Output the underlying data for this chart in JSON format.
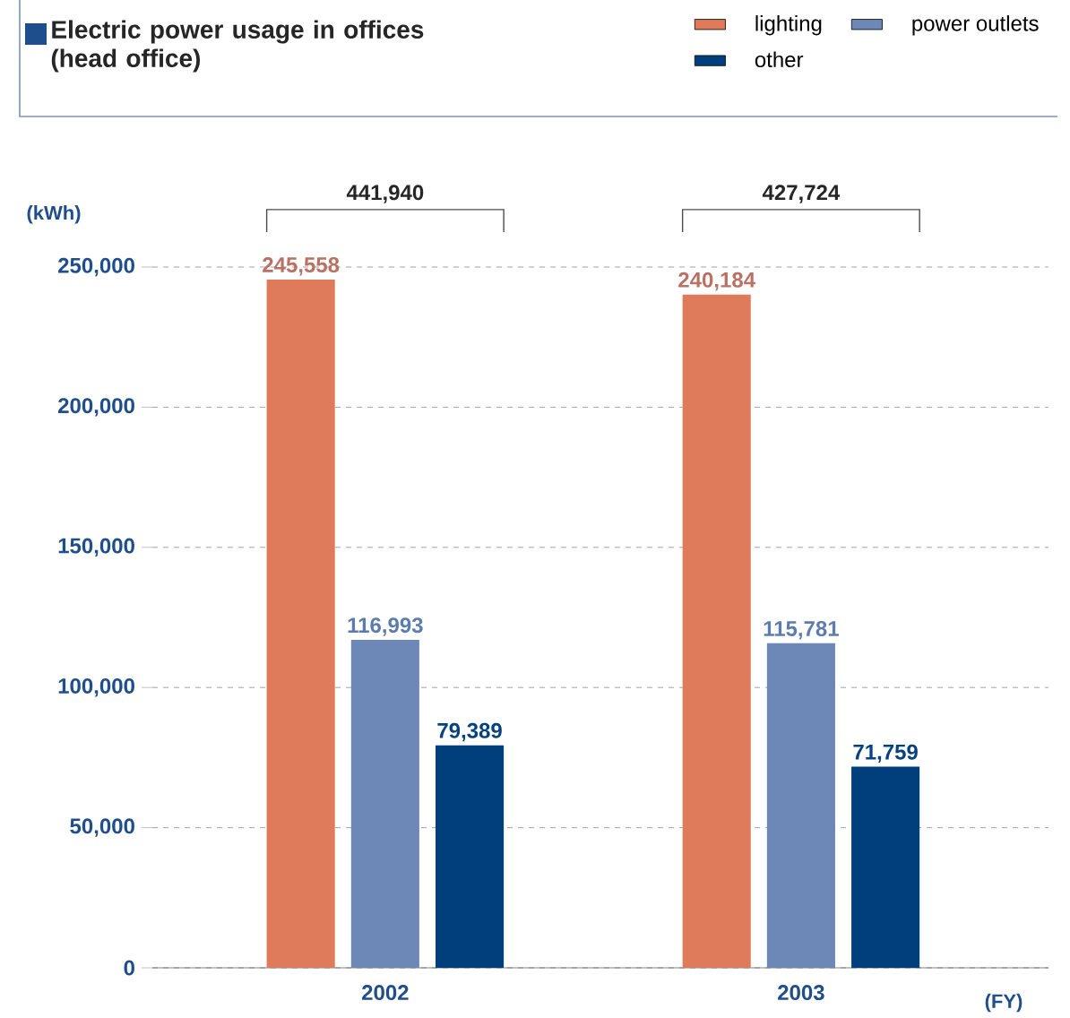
{
  "chart_data": {
    "type": "bar",
    "title": "Electric power usage in offices (head office)",
    "ylabel": "(kWh)",
    "xlabel": "(FY)",
    "categories": [
      "2002",
      "2003"
    ],
    "series": [
      {
        "name": "lighting",
        "color": "#df7a5a",
        "values": [
          245558,
          240184
        ],
        "value_labels": [
          "245,558",
          "240,184"
        ]
      },
      {
        "name": "power outlets",
        "color": "#6d88b6",
        "values": [
          116993,
          115781
        ],
        "value_labels": [
          "116,993",
          "115,781"
        ]
      },
      {
        "name": "other",
        "color": "#003f7c",
        "values": [
          79389,
          71759
        ],
        "value_labels": [
          "79,389",
          "71,759"
        ]
      }
    ],
    "annotations": [
      "441,940",
      "427,724"
    ],
    "ylim": [
      0,
      250000
    ],
    "yticks": [
      {
        "value": 0,
        "label": "0"
      },
      {
        "value": 50000,
        "label": "50,000"
      },
      {
        "value": 100000,
        "label": "100,000"
      },
      {
        "value": 150000,
        "label": "150,000"
      },
      {
        "value": 200000,
        "label": "200,000"
      },
      {
        "value": 250000,
        "label": "250,000"
      }
    ],
    "grid": "y",
    "legend": "top right"
  }
}
